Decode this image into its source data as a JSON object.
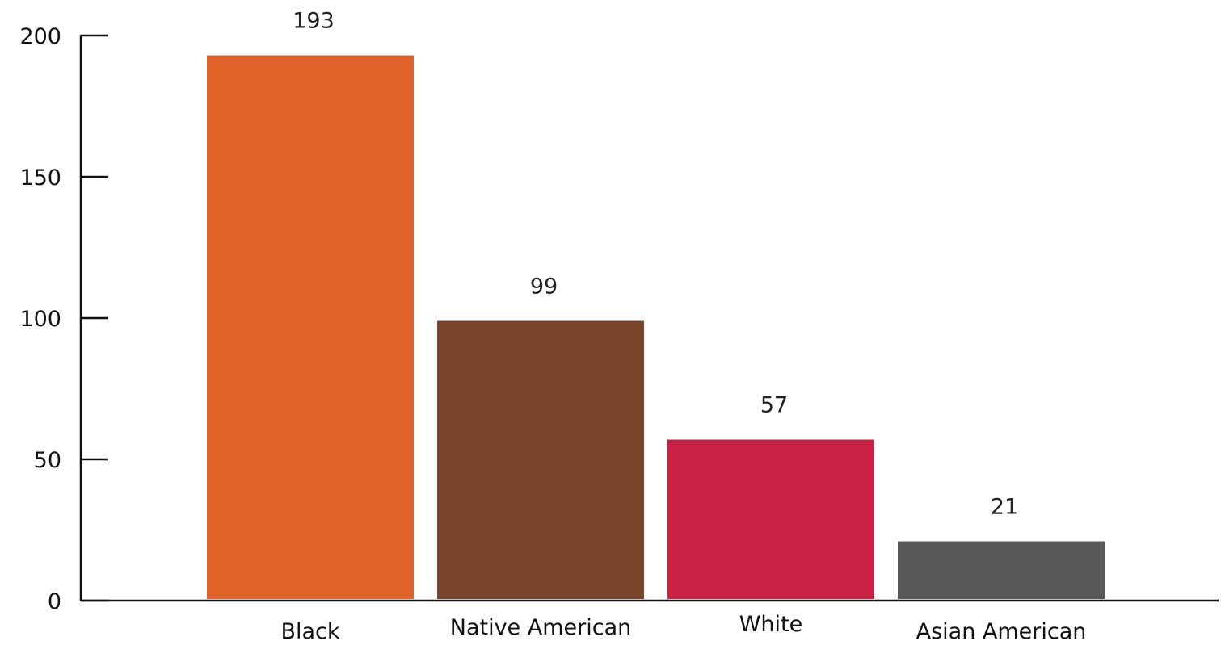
{
  "chart_data": {
    "type": "bar",
    "title": "",
    "xlabel": "",
    "ylabel": "",
    "ylim": [
      0,
      200
    ],
    "yticks": [
      0,
      50,
      100,
      150,
      200
    ],
    "grid": false,
    "categories": [
      "Black",
      "Native American",
      "White",
      "Asian American"
    ],
    "values": [
      193,
      99,
      57,
      21
    ],
    "data_labels": [
      "193",
      "99",
      "57",
      "21"
    ],
    "colors": [
      "#E0642A",
      "#78442A",
      "#CA2043",
      "#58585A"
    ],
    "axis_color": "#111111"
  }
}
